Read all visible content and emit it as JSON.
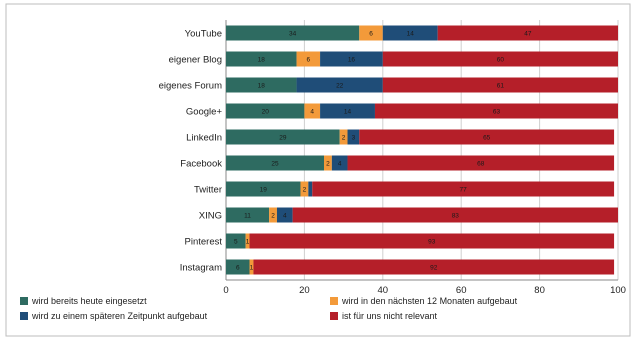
{
  "chart_data": {
    "type": "bar",
    "orientation": "horizontal",
    "stacked": true,
    "categories": [
      "YouTube",
      "eigener Blog",
      "eigenes Forum",
      "Google+",
      "LinkedIn",
      "Facebook",
      "Twitter",
      "XING",
      "Pinterest",
      "Instagram"
    ],
    "series": [
      {
        "name": "wird bereits heute eingesetzt",
        "color": "#2e6b61",
        "values": [
          34,
          18,
          18,
          20,
          29,
          25,
          19,
          11,
          5,
          6
        ]
      },
      {
        "name": "wird in den nächsten 12 Monaten aufgebaut",
        "color": "#f39a3a",
        "values": [
          6,
          6,
          0,
          4,
          2,
          2,
          2,
          2,
          1,
          1
        ]
      },
      {
        "name": "wird zu einem späteren Zeitpunkt aufgebaut",
        "color": "#1f4d78",
        "values": [
          14,
          16,
          22,
          14,
          3,
          4,
          1,
          4,
          0,
          0
        ]
      },
      {
        "name": "ist für uns nicht relevant",
        "color": "#b51f29",
        "values": [
          47,
          60,
          61,
          63,
          65,
          68,
          77,
          83,
          93,
          92
        ]
      }
    ],
    "value_labels": [
      [
        "34",
        "6",
        "14",
        "47"
      ],
      [
        "18",
        "6",
        "16",
        "60"
      ],
      [
        "18",
        "",
        "22",
        "61"
      ],
      [
        "20",
        "4",
        "14",
        "63"
      ],
      [
        "29",
        "2",
        "3",
        "65"
      ],
      [
        "25",
        "2",
        "4",
        "68"
      ],
      [
        "19",
        "2",
        "",
        "77"
      ],
      [
        "11",
        "2",
        "4",
        "83"
      ],
      [
        "5",
        "1",
        "",
        "93"
      ],
      [
        "6",
        "1",
        "",
        "92"
      ]
    ],
    "x_ticks": [
      "0",
      "20",
      "40",
      "60",
      "80",
      "100"
    ],
    "xlim": [
      0,
      100
    ],
    "grid": true,
    "legend_position": "bottom"
  }
}
